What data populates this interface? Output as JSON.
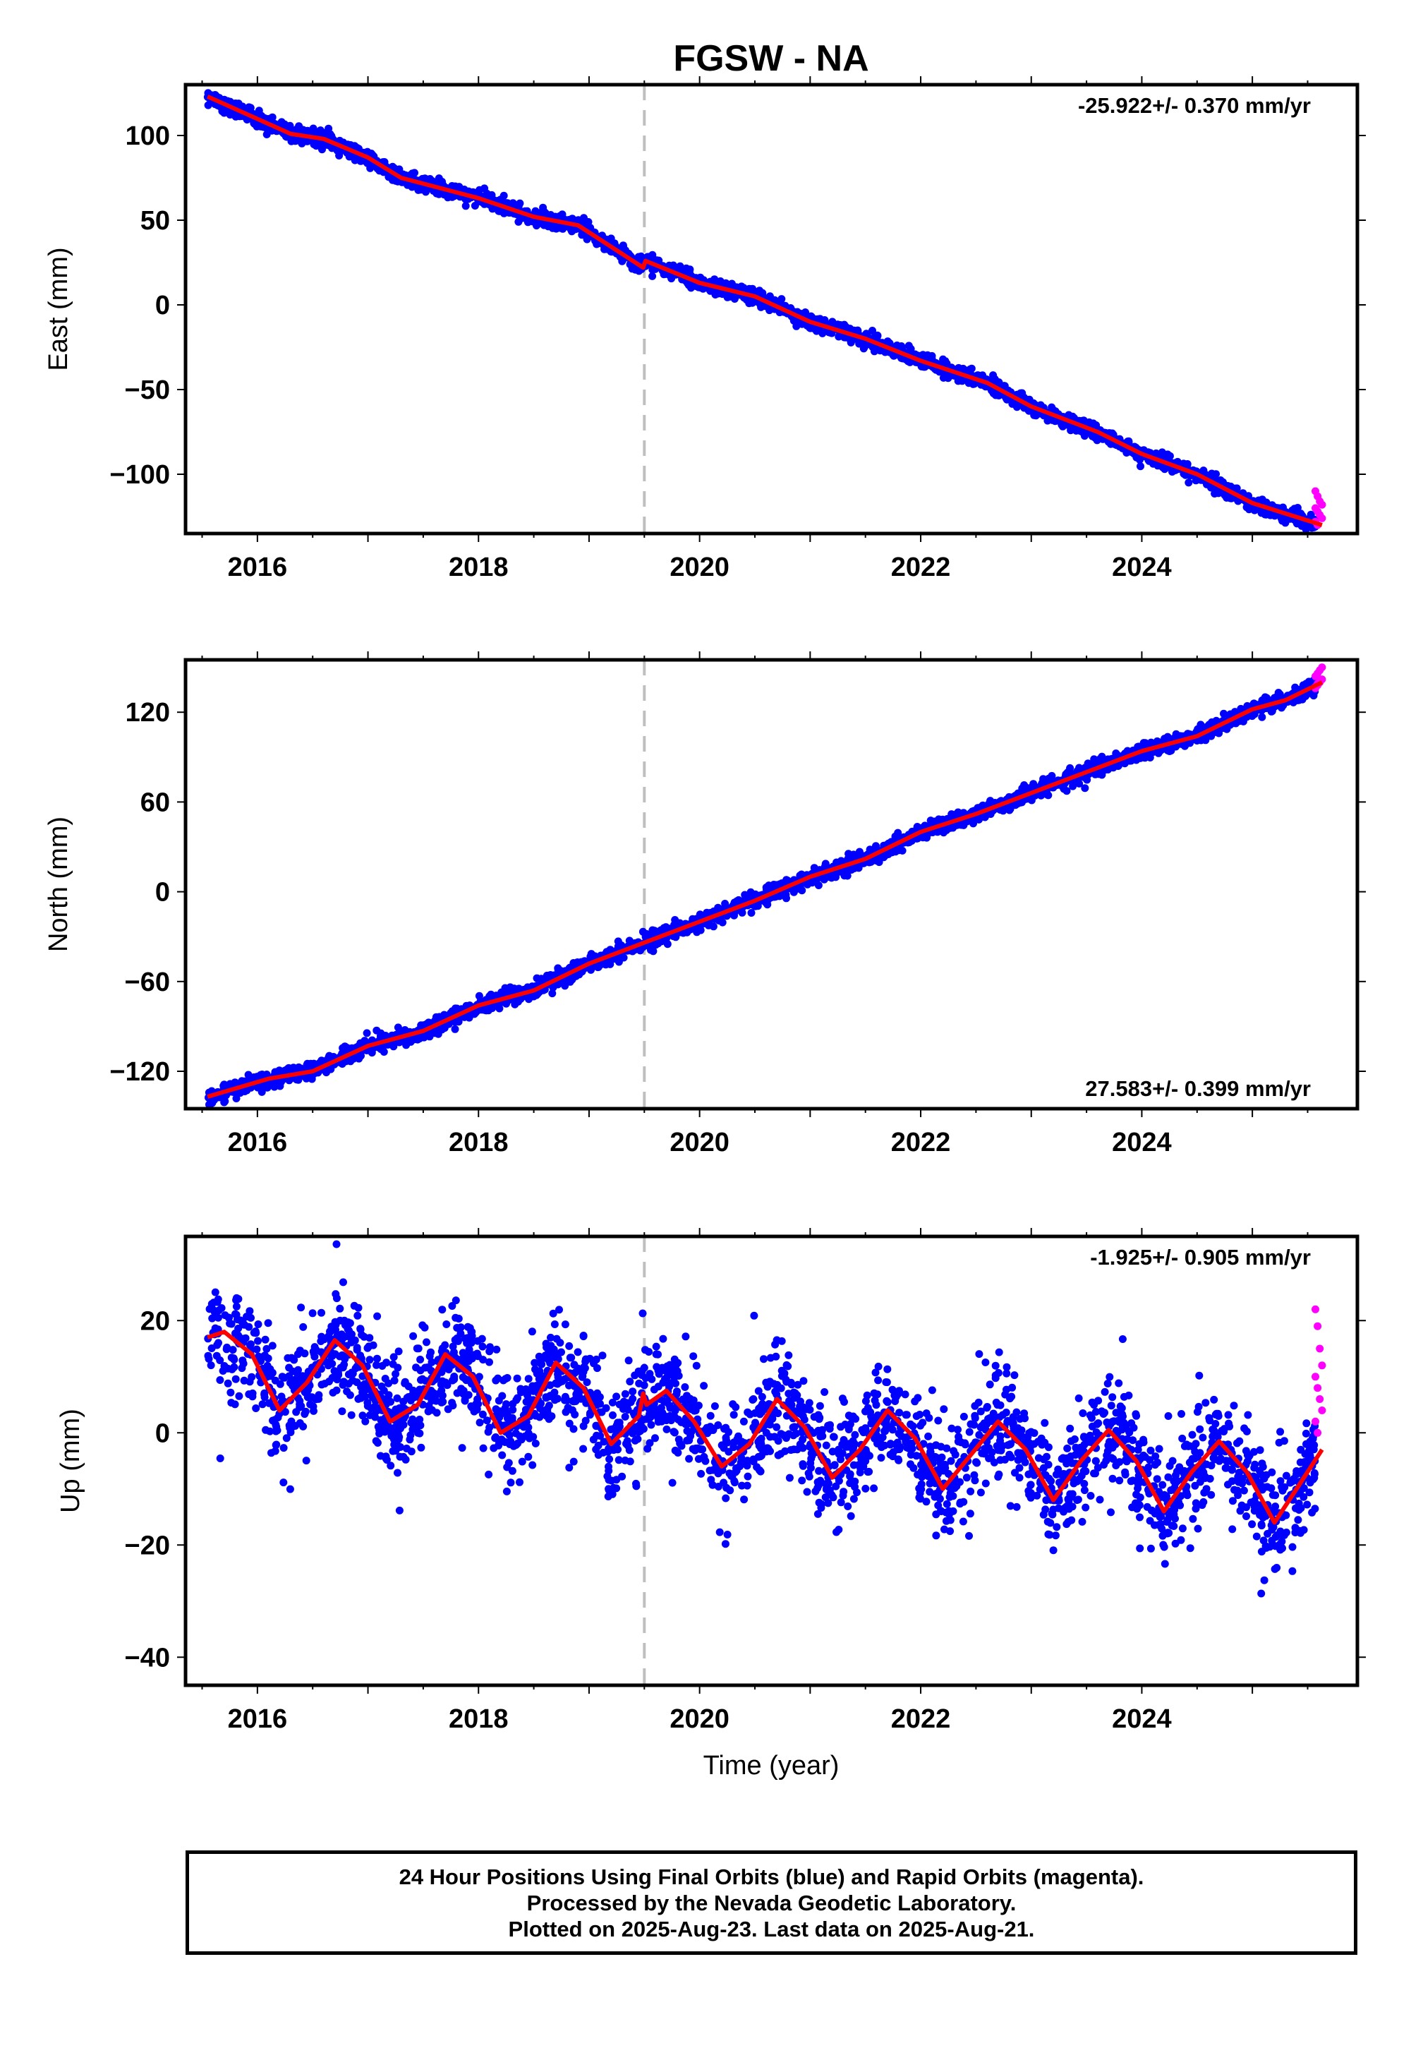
{
  "title": "FGSW - NA",
  "colors": {
    "final_orbits": "#0000ff",
    "rapid_orbits": "#ff00ff",
    "model": "#ff0000",
    "event_line": "#bfbfbf"
  },
  "xlabel": "Time (year)",
  "chart_data": [
    {
      "type": "scatter",
      "component": "east",
      "ylabel": "East (mm)",
      "rate_label": "-25.922+/- 0.370 mm/yr",
      "rate_label_position": "top-right",
      "xlim": [
        2015.35,
        2025.95
      ],
      "ylim": [
        -135,
        130
      ],
      "xticks": [
        2016,
        2018,
        2020,
        2022,
        2024
      ],
      "xtick_labels": [
        "2016",
        "2018",
        "2020",
        "2022",
        "2024"
      ],
      "yticks": [
        -100,
        -50,
        0,
        50,
        100
      ],
      "ytick_labels": [
        "−100",
        "−50",
        "0",
        "50",
        "100"
      ],
      "event_line_x": 2019.5,
      "data_start": 2015.55,
      "rapid_start": 2025.57,
      "data_end": 2025.63,
      "rate": -25.922,
      "offset_at_2020": 20.5,
      "step_at_event": 5,
      "annual_amplitude": 1.5,
      "annual_phase": 0.5,
      "noise_sd": 2.2,
      "model_anchors": [
        [
          2015.55,
          123
        ],
        [
          2016.3,
          101
        ],
        [
          2016.6,
          98
        ],
        [
          2017.0,
          87
        ],
        [
          2017.3,
          75
        ],
        [
          2018.0,
          63
        ],
        [
          2018.5,
          52
        ],
        [
          2018.9,
          47
        ],
        [
          2019.49,
          22
        ],
        [
          2019.51,
          26
        ],
        [
          2020.0,
          13
        ],
        [
          2020.5,
          5
        ],
        [
          2021.0,
          -10
        ],
        [
          2021.5,
          -20
        ],
        [
          2022.0,
          -33
        ],
        [
          2022.6,
          -46
        ],
        [
          2023.0,
          -60
        ],
        [
          2023.6,
          -75
        ],
        [
          2024.0,
          -88
        ],
        [
          2024.5,
          -100
        ],
        [
          2025.0,
          -117
        ],
        [
          2025.63,
          -130
        ]
      ],
      "rapid_values": [
        -110,
        -113,
        -116,
        -118,
        -120,
        -122,
        -124,
        -126,
        -128,
        -130
      ]
    },
    {
      "type": "scatter",
      "component": "north",
      "ylabel": "North (mm)",
      "rate_label": "27.583+/- 0.399 mm/yr",
      "rate_label_position": "bottom-right",
      "xlim": [
        2015.35,
        2025.95
      ],
      "ylim": [
        -145,
        155
      ],
      "xticks": [
        2016,
        2018,
        2020,
        2022,
        2024
      ],
      "xtick_labels": [
        "2016",
        "2018",
        "2020",
        "2022",
        "2024"
      ],
      "yticks": [
        -120,
        -60,
        0,
        60,
        120
      ],
      "ytick_labels": [
        "−120",
        "−60",
        "0",
        "60",
        "120"
      ],
      "event_line_x": 2019.5,
      "data_start": 2015.55,
      "rapid_start": 2025.57,
      "data_end": 2025.63,
      "rate": 27.583,
      "offset_at_2020": -14,
      "step_at_event": 0,
      "annual_amplitude": 1.5,
      "annual_phase": 0.2,
      "noise_sd": 2.6,
      "model_anchors": [
        [
          2015.55,
          -137
        ],
        [
          2016.1,
          -125
        ],
        [
          2016.5,
          -120
        ],
        [
          2017.0,
          -103
        ],
        [
          2017.5,
          -93
        ],
        [
          2018.0,
          -76
        ],
        [
          2018.5,
          -66
        ],
        [
          2019.0,
          -48
        ],
        [
          2019.5,
          -34
        ],
        [
          2020.0,
          -20
        ],
        [
          2020.5,
          -6
        ],
        [
          2021.0,
          10
        ],
        [
          2021.5,
          22
        ],
        [
          2022.0,
          40
        ],
        [
          2022.5,
          52
        ],
        [
          2023.0,
          66
        ],
        [
          2023.5,
          80
        ],
        [
          2024.0,
          94
        ],
        [
          2024.5,
          104
        ],
        [
          2025.0,
          122
        ],
        [
          2025.3,
          128
        ],
        [
          2025.63,
          140
        ]
      ],
      "rapid_values": [
        136,
        138,
        140,
        142,
        144,
        146,
        148,
        150,
        137,
        139
      ]
    },
    {
      "type": "scatter",
      "component": "up",
      "ylabel": "Up (mm)",
      "rate_label": "-1.925+/- 0.905 mm/yr",
      "rate_label_position": "top-right",
      "xlim": [
        2015.35,
        2025.95
      ],
      "ylim": [
        -45,
        35
      ],
      "xticks": [
        2016,
        2018,
        2020,
        2022,
        2024
      ],
      "xtick_labels": [
        "2016",
        "2018",
        "2020",
        "2022",
        "2024"
      ],
      "yticks": [
        -40,
        -20,
        0,
        20
      ],
      "ytick_labels": [
        "−40",
        "−20",
        "0",
        "20"
      ],
      "event_line_x": 2019.5,
      "data_start": 2015.55,
      "rapid_start": 2025.57,
      "data_end": 2025.63,
      "rate": -1.925,
      "offset_at_2020": 0.4,
      "step_at_event": 0,
      "annual_amplitude": 7,
      "annual_phase": 0.7,
      "noise_sd": 4.6,
      "model_anchors": [
        [
          2015.55,
          17
        ],
        [
          2015.7,
          18
        ],
        [
          2015.95,
          14
        ],
        [
          2016.2,
          4
        ],
        [
          2016.45,
          9
        ],
        [
          2016.7,
          16.5
        ],
        [
          2016.95,
          12
        ],
        [
          2017.2,
          2
        ],
        [
          2017.45,
          5
        ],
        [
          2017.7,
          14
        ],
        [
          2017.95,
          10
        ],
        [
          2018.2,
          0
        ],
        [
          2018.45,
          3
        ],
        [
          2018.7,
          12.5
        ],
        [
          2018.95,
          8
        ],
        [
          2019.2,
          -2
        ],
        [
          2019.45,
          3
        ],
        [
          2019.49,
          7
        ],
        [
          2019.52,
          5
        ],
        [
          2019.7,
          7.5
        ],
        [
          2019.95,
          2
        ],
        [
          2020.2,
          -6
        ],
        [
          2020.45,
          -2
        ],
        [
          2020.7,
          6
        ],
        [
          2020.95,
          1
        ],
        [
          2021.2,
          -8
        ],
        [
          2021.45,
          -3
        ],
        [
          2021.7,
          4
        ],
        [
          2021.95,
          -1
        ],
        [
          2022.2,
          -10
        ],
        [
          2022.45,
          -4
        ],
        [
          2022.7,
          2
        ],
        [
          2022.95,
          -3
        ],
        [
          2023.2,
          -12
        ],
        [
          2023.45,
          -5
        ],
        [
          2023.7,
          0.5
        ],
        [
          2023.95,
          -5
        ],
        [
          2024.2,
          -14
        ],
        [
          2024.45,
          -7
        ],
        [
          2024.7,
          -1.5
        ],
        [
          2024.95,
          -7
        ],
        [
          2025.2,
          -16
        ],
        [
          2025.4,
          -10
        ],
        [
          2025.63,
          -3
        ]
      ],
      "rapid_values": [
        22,
        19,
        15,
        12,
        10,
        8,
        6,
        4,
        2,
        0
      ]
    }
  ],
  "footer": {
    "line1": "24 Hour Positions Using Final Orbits (blue) and Rapid Orbits (magenta).",
    "line2": "Processed by the Nevada Geodetic Laboratory.",
    "line3": "Plotted on 2025-Aug-23. Last data on 2025-Aug-21."
  }
}
